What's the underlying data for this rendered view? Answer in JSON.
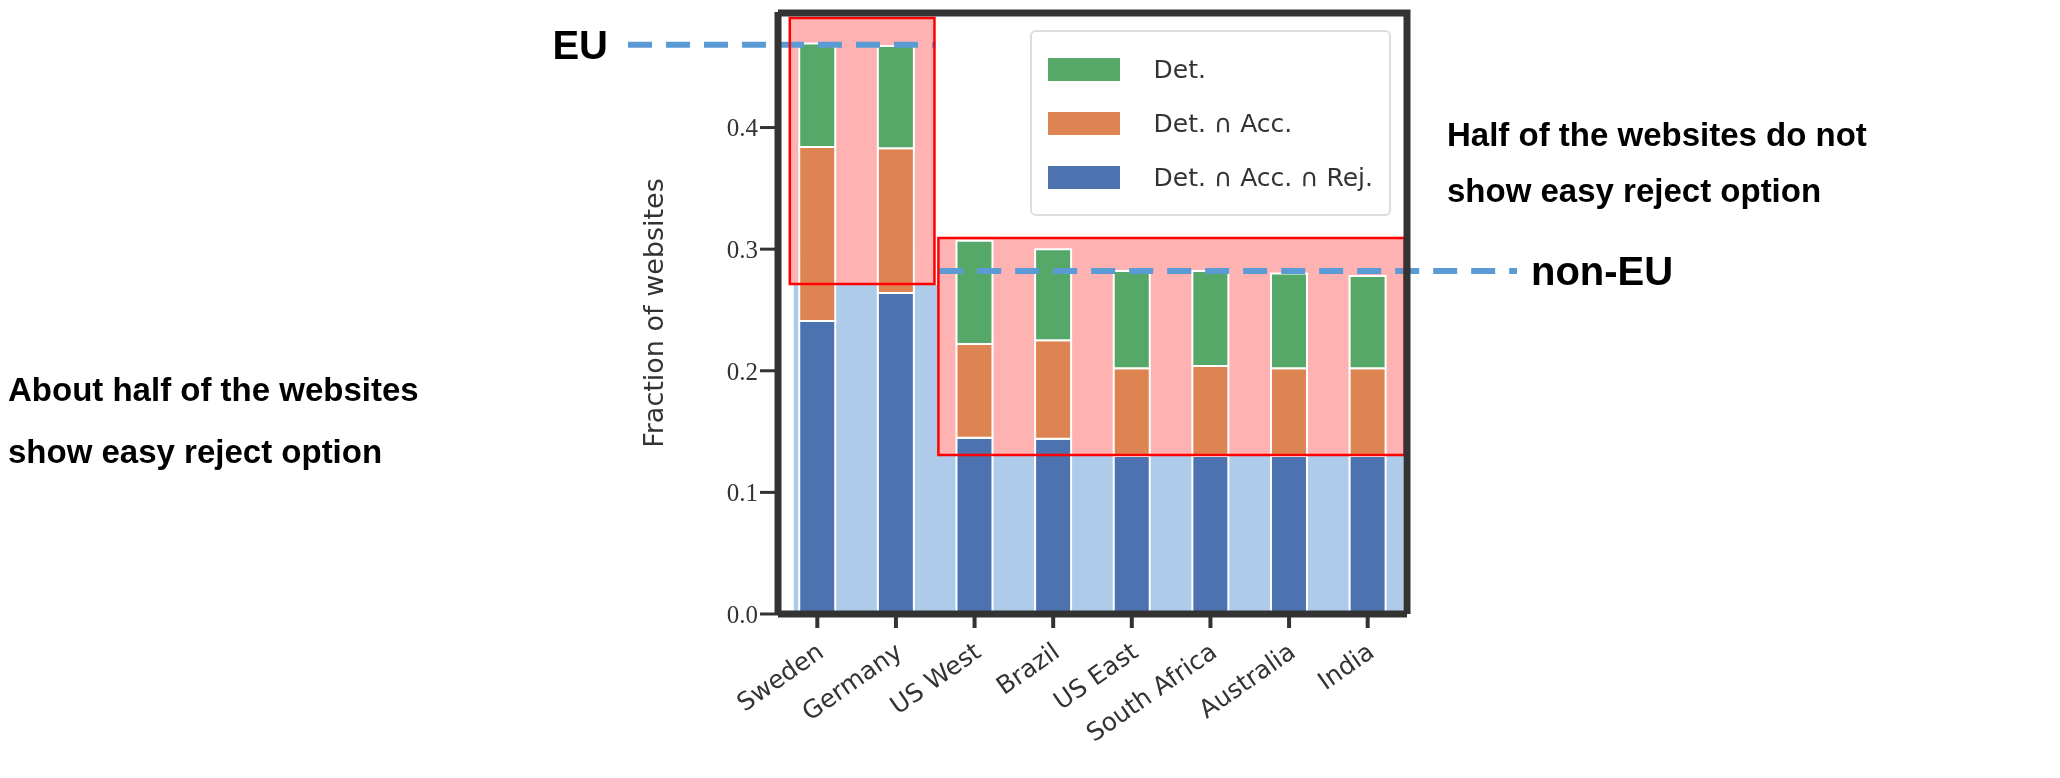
{
  "chart_data": {
    "type": "bar",
    "stacked": true,
    "ylabel": "Fraction of websites",
    "categories": [
      "Sweden",
      "Germany",
      "US West",
      "Brazil",
      "US East",
      "South Africa",
      "Australia",
      "India"
    ],
    "series": [
      {
        "name": "Det. ∩ Acc. ∩ Rej.",
        "color": "#4c72b0",
        "values": [
          0.241,
          0.264,
          0.145,
          0.144,
          0.13,
          0.13,
          0.13,
          0.13
        ]
      },
      {
        "name": "Det. ∩ Acc.",
        "color": "#dd8452",
        "values": [
          0.143,
          0.119,
          0.077,
          0.081,
          0.072,
          0.074,
          0.072,
          0.072
        ]
      },
      {
        "name": "Det.",
        "color": "#55a868",
        "values": [
          0.085,
          0.084,
          0.085,
          0.075,
          0.08,
          0.078,
          0.078,
          0.076
        ]
      }
    ],
    "ylim": [
      0,
      0.495
    ],
    "yticks": [
      {
        "value": 0,
        "label": "0.0"
      },
      0.1,
      0.2,
      0.3,
      0.4
    ],
    "legend": "top right",
    "grid": false,
    "ref_lines": [
      {
        "axis": "y",
        "value": 0.468,
        "label": "EU",
        "color": "#5b9bd5",
        "line_style": "dashed"
      },
      {
        "axis": "y",
        "value": 0.282,
        "label": "non-EU",
        "color": "#5b9bd5",
        "line_style": "dashed"
      }
    ],
    "annotations": [
      "About half of the websites show easy reject option",
      "Half of the websites do not show easy reject option"
    ]
  }
}
